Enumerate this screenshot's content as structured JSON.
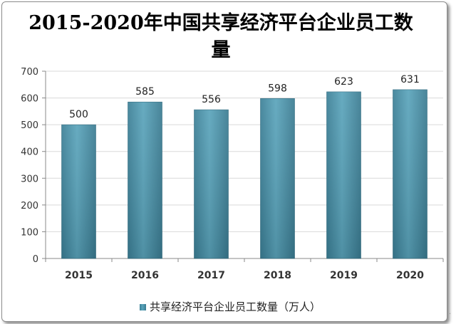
{
  "chart_data": {
    "type": "bar",
    "title": "2015-2020年中国共享经济平台企业员工数量",
    "categories": [
      "2015",
      "2016",
      "2017",
      "2018",
      "2019",
      "2020"
    ],
    "series": [
      {
        "name": "共享经济平台企业员工数量（万人）",
        "values": [
          500,
          585,
          556,
          598,
          623,
          631
        ]
      }
    ],
    "ylim": [
      0,
      700
    ],
    "yticks": [
      0,
      100,
      200,
      300,
      400,
      500,
      600,
      700
    ],
    "grid": true,
    "legend_position": "bottom",
    "bar_color": "#4a8fa5"
  }
}
